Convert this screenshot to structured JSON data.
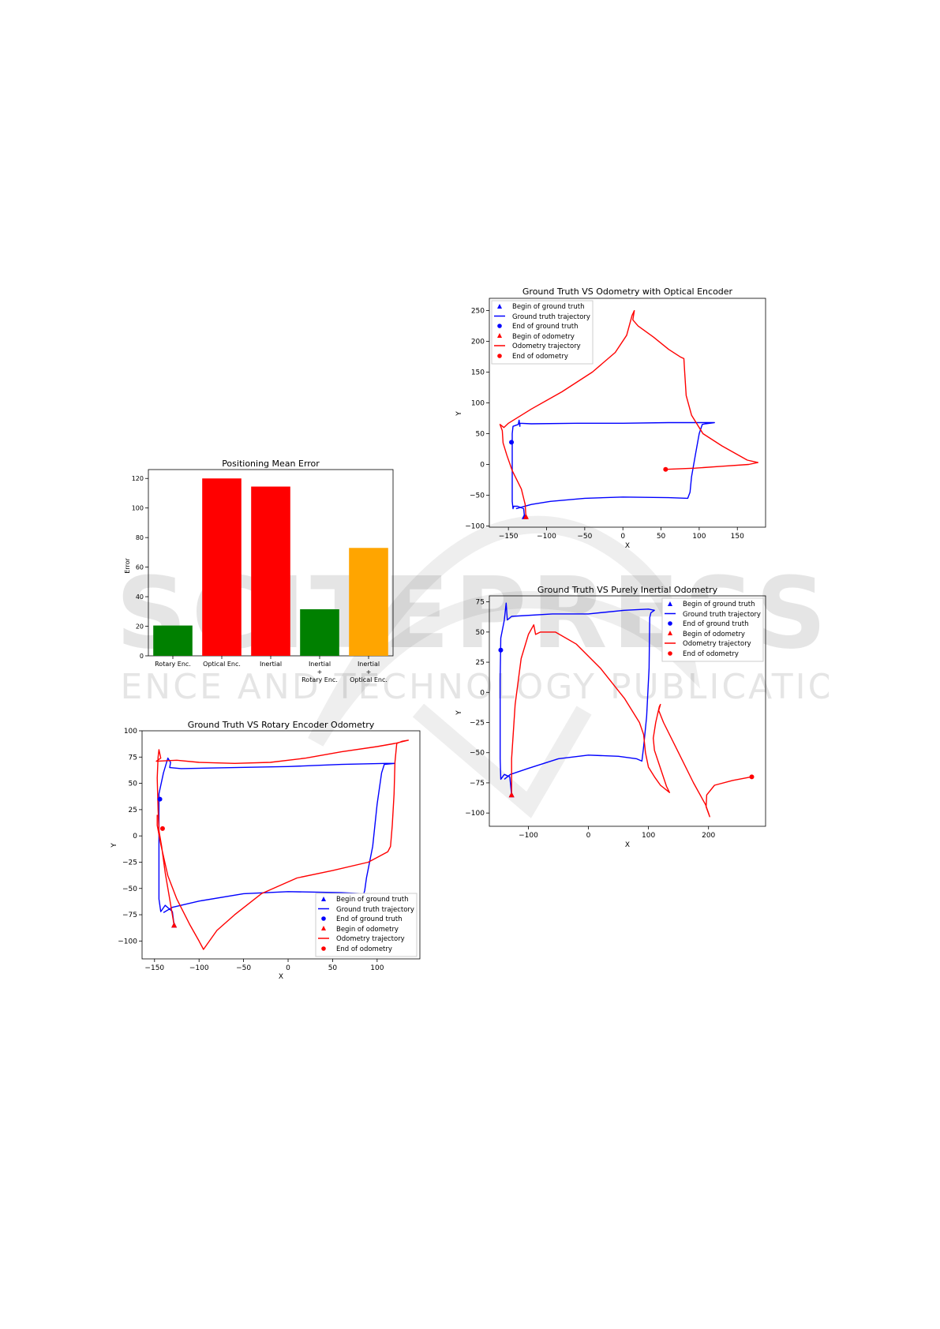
{
  "watermark": {
    "text_main": "SCITEPRESS",
    "text_sub": "SCIENCE AND TECHNOLOGY PUBLICATIONS"
  },
  "legend_labels": {
    "gt_begin": "Begin of ground truth",
    "gt_traj": "Ground truth trajectory",
    "gt_end": "End of ground truth",
    "od_begin": "Begin of odometry",
    "od_traj": "Odometry trajectory",
    "od_end": "End of odometry"
  },
  "colors": {
    "ground_truth": "#0000ff",
    "odometry": "#ff0000",
    "green": "#008000",
    "red": "#ff0000",
    "orange": "#ffa500"
  },
  "chart_data": [
    {
      "id": "bar",
      "type": "bar",
      "title": "Positioning Mean Error",
      "xlabel": "",
      "ylabel": "Error",
      "ylim": [
        0,
        126
      ],
      "yticks": [
        0,
        20,
        40,
        60,
        80,
        100,
        120
      ],
      "categories": [
        [
          "Rotary Enc."
        ],
        [
          "Optical Enc."
        ],
        [
          "Inertial"
        ],
        [
          "Inertial",
          "+",
          "Rotary Enc."
        ],
        [
          "Inertial",
          "+",
          "Optical Enc."
        ]
      ],
      "values": [
        20.5,
        120,
        114.5,
        31.5,
        73
      ],
      "bar_colors": [
        "#008000",
        "#ff0000",
        "#ff0000",
        "#008000",
        "#ffa500"
      ],
      "grid": false
    },
    {
      "id": "optical",
      "type": "line",
      "title": "Ground Truth VS Odometry with Optical Encoder",
      "xlabel": "X",
      "ylabel": "Y",
      "xlim": [
        -175,
        187
      ],
      "ylim": [
        -102,
        270
      ],
      "xticks": [
        -150,
        -100,
        -50,
        0,
        50,
        100,
        150
      ],
      "yticks": [
        -100,
        -50,
        0,
        50,
        100,
        150,
        200,
        250
      ],
      "legend": "top-left",
      "grid": false,
      "series": [
        {
          "name": "Ground truth trajectory",
          "color": "#0000ff",
          "points": [
            [
              -129,
              -85
            ],
            [
              -130,
              -72
            ],
            [
              -138,
              -68
            ],
            [
              -143,
              -68
            ],
            [
              -144,
              -72
            ],
            [
              -145,
              -60
            ],
            [
              -145,
              20
            ],
            [
              -145,
              50
            ],
            [
              -144,
              62
            ],
            [
              -137,
              65
            ],
            [
              -136,
              72
            ],
            [
              -135,
              62
            ],
            [
              -135,
              67
            ],
            [
              -120,
              66
            ],
            [
              -60,
              67
            ],
            [
              0,
              67
            ],
            [
              60,
              68
            ],
            [
              108,
              68
            ],
            [
              120,
              68
            ],
            [
              108,
              66
            ],
            [
              104,
              65
            ],
            [
              100,
              50
            ],
            [
              95,
              15
            ],
            [
              90,
              -20
            ],
            [
              88,
              -45
            ],
            [
              85,
              -55
            ],
            [
              60,
              -54
            ],
            [
              0,
              -53
            ],
            [
              -50,
              -55
            ],
            [
              -95,
              -60
            ],
            [
              -120,
              -65
            ],
            [
              -140,
              -72
            ]
          ]
        },
        {
          "name": "Odometry trajectory",
          "color": "#ff0000",
          "points": [
            [
              -127,
              -85
            ],
            [
              -128,
              -65
            ],
            [
              -133,
              -40
            ],
            [
              -145,
              -10
            ],
            [
              -152,
              15
            ],
            [
              -157,
              35
            ],
            [
              -158,
              55
            ],
            [
              -161,
              65
            ],
            [
              -156,
              60
            ],
            [
              -150,
              67
            ],
            [
              -120,
              90
            ],
            [
              -80,
              118
            ],
            [
              -40,
              150
            ],
            [
              -10,
              182
            ],
            [
              5,
              210
            ],
            [
              12,
              242
            ],
            [
              15,
              250
            ],
            [
              13,
              235
            ],
            [
              20,
              225
            ],
            [
              40,
              207
            ],
            [
              60,
              187
            ],
            [
              75,
              175
            ],
            [
              80,
              172
            ],
            [
              81,
              150
            ],
            [
              83,
              112
            ],
            [
              90,
              80
            ],
            [
              105,
              50
            ],
            [
              130,
              30
            ],
            [
              163,
              7
            ],
            [
              177,
              3
            ],
            [
              165,
              0
            ],
            [
              130,
              -3
            ],
            [
              95,
              -6
            ],
            [
              57,
              -8
            ]
          ]
        }
      ],
      "markers": [
        {
          "name": "Begin of ground truth",
          "shape": "triangle",
          "color": "#0000ff",
          "x": -129,
          "y": -85
        },
        {
          "name": "End of ground truth",
          "shape": "circle",
          "color": "#0000ff",
          "x": -146,
          "y": 36
        },
        {
          "name": "Begin of odometry",
          "shape": "triangle",
          "color": "#ff0000",
          "x": -127,
          "y": -85
        },
        {
          "name": "End of odometry",
          "shape": "circle",
          "color": "#ff0000",
          "x": 56,
          "y": -8
        }
      ]
    },
    {
      "id": "inertial",
      "type": "line",
      "title": "Ground Truth VS Purely Inertial Odometry",
      "xlabel": "X",
      "ylabel": "Y",
      "xlim": [
        -165,
        295
      ],
      "ylim": [
        -111,
        80
      ],
      "xticks": [
        -100,
        0,
        100,
        200
      ],
      "yticks": [
        -100,
        -75,
        -50,
        -25,
        0,
        25,
        50,
        75
      ],
      "legend": "top-right",
      "grid": false,
      "series": [
        {
          "name": "Ground truth trajectory",
          "color": "#0000ff",
          "points": [
            [
              -128,
              -85
            ],
            [
              -131,
              -70
            ],
            [
              -140,
              -68
            ],
            [
              -146,
              -72
            ],
            [
              -147,
              -55
            ],
            [
              -147,
              10
            ],
            [
              -146,
              45
            ],
            [
              -140,
              60
            ],
            [
              -137,
              74
            ],
            [
              -135,
              60
            ],
            [
              -128,
              63
            ],
            [
              -60,
              65
            ],
            [
              0,
              65
            ],
            [
              60,
              68
            ],
            [
              100,
              69
            ],
            [
              110,
              68
            ],
            [
              104,
              66
            ],
            [
              102,
              62
            ],
            [
              101,
              20
            ],
            [
              97,
              -20
            ],
            [
              92,
              -45
            ],
            [
              89,
              -57
            ],
            [
              80,
              -55
            ],
            [
              50,
              -53
            ],
            [
              0,
              -52
            ],
            [
              -50,
              -55
            ],
            [
              -100,
              -63
            ],
            [
              -130,
              -68
            ],
            [
              -140,
              -72
            ]
          ]
        },
        {
          "name": "Odometry trajectory",
          "color": "#ff0000",
          "points": [
            [
              -128,
              -85
            ],
            [
              -128,
              -55
            ],
            [
              -122,
              -10
            ],
            [
              -112,
              28
            ],
            [
              -100,
              48
            ],
            [
              -91,
              56
            ],
            [
              -88,
              48
            ],
            [
              -80,
              50
            ],
            [
              -55,
              50
            ],
            [
              -20,
              40
            ],
            [
              20,
              20
            ],
            [
              60,
              -5
            ],
            [
              85,
              -25
            ],
            [
              92,
              -35
            ],
            [
              95,
              -50
            ],
            [
              100,
              -62
            ],
            [
              110,
              -70
            ],
            [
              120,
              -77
            ],
            [
              135,
              -83
            ],
            [
              130,
              -78
            ],
            [
              118,
              -60
            ],
            [
              110,
              -48
            ],
            [
              108,
              -38
            ],
            [
              112,
              -25
            ],
            [
              118,
              -12
            ],
            [
              120,
              -10
            ],
            [
              117,
              -15
            ],
            [
              125,
              -25
            ],
            [
              150,
              -50
            ],
            [
              175,
              -75
            ],
            [
              195,
              -93
            ],
            [
              200,
              -100
            ],
            [
              202,
              -103
            ],
            [
              196,
              -95
            ],
            [
              197,
              -85
            ],
            [
              210,
              -77
            ],
            [
              240,
              -73
            ],
            [
              272,
              -70
            ]
          ]
        }
      ],
      "markers": [
        {
          "name": "Begin of ground truth",
          "shape": "triangle",
          "color": "#0000ff",
          "x": -128,
          "y": -85
        },
        {
          "name": "End of ground truth",
          "shape": "circle",
          "color": "#0000ff",
          "x": -146,
          "y": 35
        },
        {
          "name": "Begin of odometry",
          "shape": "triangle",
          "color": "#ff0000",
          "x": -128,
          "y": -85
        },
        {
          "name": "End of odometry",
          "shape": "circle",
          "color": "#ff0000",
          "x": 272,
          "y": -70
        }
      ]
    },
    {
      "id": "rotary",
      "type": "line",
      "title": "Ground Truth VS Rotary Encoder Odometry",
      "xlabel": "X",
      "ylabel": "Y",
      "xlim": [
        -164,
        148
      ],
      "ylim": [
        -117,
        100
      ],
      "xticks": [
        -150,
        -100,
        -50,
        0,
        50,
        100
      ],
      "yticks": [
        -100,
        -75,
        -50,
        -25,
        0,
        25,
        50,
        75,
        100
      ],
      "legend": "bottom-right",
      "grid": false,
      "series": [
        {
          "name": "Ground truth trajectory",
          "color": "#0000ff",
          "points": [
            [
              -128,
              -85
            ],
            [
              -130,
              -72
            ],
            [
              -138,
              -66
            ],
            [
              -143,
              -72
            ],
            [
              -145,
              -60
            ],
            [
              -145,
              0
            ],
            [
              -145,
              40
            ],
            [
              -140,
              60
            ],
            [
              -135,
              74
            ],
            [
              -132,
              70
            ],
            [
              -133,
              65
            ],
            [
              -120,
              64
            ],
            [
              -60,
              65
            ],
            [
              0,
              66
            ],
            [
              60,
              68
            ],
            [
              110,
              69
            ],
            [
              120,
              69
            ],
            [
              108,
              68
            ],
            [
              105,
              60
            ],
            [
              100,
              30
            ],
            [
              95,
              -10
            ],
            [
              88,
              -40
            ],
            [
              86,
              -52
            ],
            [
              85,
              -55
            ],
            [
              60,
              -54
            ],
            [
              0,
              -53
            ],
            [
              -50,
              -55
            ],
            [
              -100,
              -62
            ],
            [
              -130,
              -68
            ],
            [
              -140,
              -73
            ]
          ]
        },
        {
          "name": "Odometry trajectory",
          "color": "#ff0000",
          "points": [
            [
              -128,
              -85
            ],
            [
              -133,
              -60
            ],
            [
              -138,
              -35
            ],
            [
              -142,
              -10
            ],
            [
              -145,
              5
            ],
            [
              -146,
              25
            ],
            [
              -147,
              55
            ],
            [
              -146,
              75
            ],
            [
              -145,
              82
            ],
            [
              -143,
              74
            ],
            [
              -148,
              71
            ],
            [
              -125,
              72
            ],
            [
              -100,
              70
            ],
            [
              -60,
              69
            ],
            [
              -20,
              70
            ],
            [
              20,
              74
            ],
            [
              60,
              80
            ],
            [
              100,
              85
            ],
            [
              120,
              88
            ],
            [
              135,
              91
            ],
            [
              128,
              90
            ],
            [
              122,
              88
            ],
            [
              120,
              70
            ],
            [
              119,
              40
            ],
            [
              117,
              10
            ],
            [
              115,
              -10
            ],
            [
              112,
              -15
            ],
            [
              90,
              -25
            ],
            [
              50,
              -33
            ],
            [
              10,
              -40
            ],
            [
              -30,
              -55
            ],
            [
              -60,
              -75
            ],
            [
              -80,
              -90
            ],
            [
              -95,
              -108
            ],
            [
              -100,
              -100
            ],
            [
              -110,
              -85
            ],
            [
              -125,
              -60
            ],
            [
              -135,
              -38
            ],
            [
              -143,
              -8
            ],
            [
              -147,
              10
            ],
            [
              -147,
              20
            ]
          ]
        }
      ],
      "markers": [
        {
          "name": "Begin of ground truth",
          "shape": "triangle",
          "color": "#0000ff",
          "x": -128,
          "y": -85
        },
        {
          "name": "End of ground truth",
          "shape": "circle",
          "color": "#0000ff",
          "x": -144,
          "y": 35
        },
        {
          "name": "Begin of odometry",
          "shape": "triangle",
          "color": "#ff0000",
          "x": -128,
          "y": -85
        },
        {
          "name": "End of odometry",
          "shape": "circle",
          "color": "#ff0000",
          "x": -141,
          "y": 7
        }
      ]
    }
  ]
}
